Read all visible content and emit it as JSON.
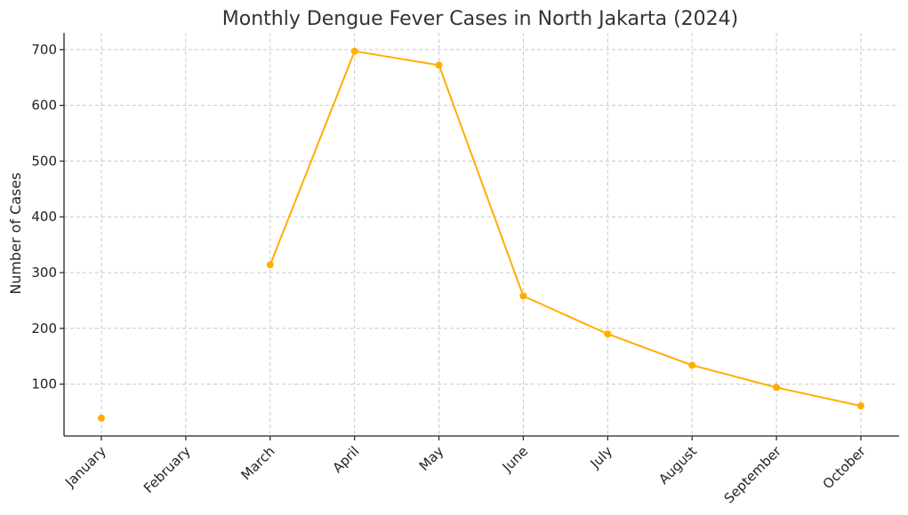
{
  "chart_data": {
    "type": "line",
    "title": "Monthly Dengue Fever Cases in North Jakarta (2024)",
    "xlabel": "",
    "ylabel": "Number of Cases",
    "categories": [
      "January",
      "February",
      "March",
      "April",
      "May",
      "June",
      "July",
      "August",
      "September",
      "October"
    ],
    "yticks": [
      100,
      200,
      300,
      400,
      500,
      600,
      700
    ],
    "ylim": [
      7,
      730
    ],
    "grid": true,
    "series": [
      {
        "values": [
          39,
          null,
          314,
          697,
          672,
          258,
          190,
          134,
          94,
          61
        ],
        "color": "#ffae00"
      }
    ]
  }
}
